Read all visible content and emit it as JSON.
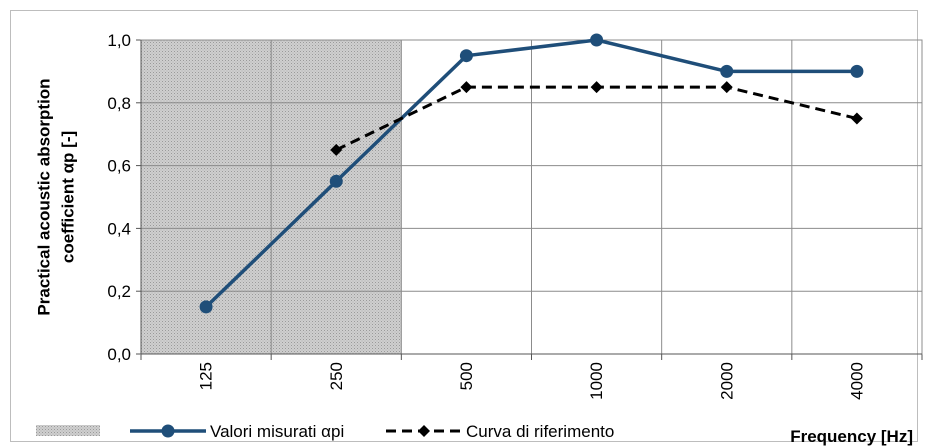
{
  "chart_data": {
    "type": "line",
    "categories": [
      "125",
      "250",
      "500",
      "1000",
      "2000",
      "4000"
    ],
    "series": [
      {
        "name": "Valori misurati αpi",
        "values": [
          0.15,
          0.55,
          0.95,
          1.0,
          0.9,
          0.9
        ],
        "color": "#1f4e79",
        "marker": "circle",
        "dash": "solid"
      },
      {
        "name": "Curva di riferimento",
        "values": [
          null,
          0.65,
          0.85,
          0.85,
          0.85,
          0.75
        ],
        "color": "#000000",
        "marker": "diamond",
        "dash": "dashed"
      }
    ],
    "ylabel_lines": [
      "Practical acoustic absorption",
      "coefficient αp [-]"
    ],
    "xlabel": "Frequency [Hz]",
    "ylim": [
      0,
      1.0
    ],
    "y_ticks": [
      "0,0",
      "0,2",
      "0,4",
      "0,6",
      "0,8",
      "1,0"
    ],
    "y_tick_values": [
      0,
      0.2,
      0.4,
      0.6,
      0.8,
      1.0
    ],
    "grid": true,
    "shaded_region": {
      "from": "125",
      "to": "250",
      "color": "#c8c8c8"
    },
    "legend_position": "bottom"
  }
}
